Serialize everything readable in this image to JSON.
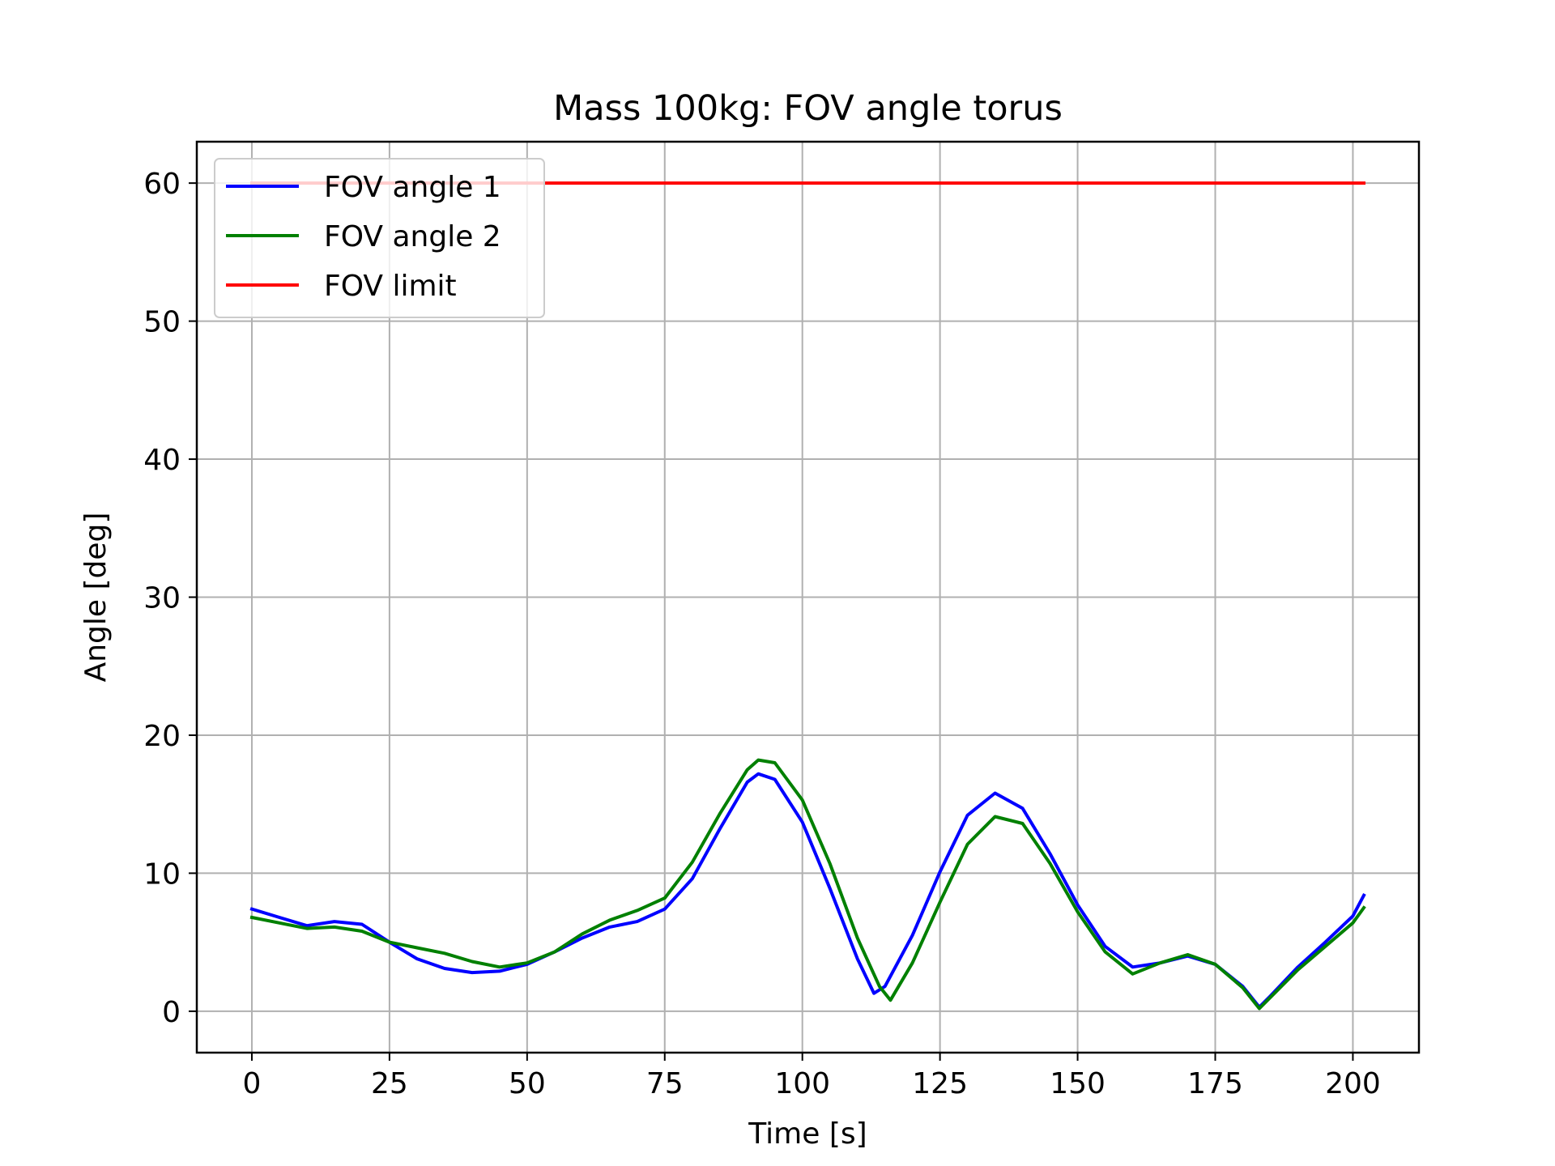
{
  "chart_data": {
    "type": "line",
    "title": "Mass 100kg: FOV angle torus",
    "xlabel": "Time [s]",
    "ylabel": "Angle [deg]",
    "xlim": [
      -10,
      212
    ],
    "ylim": [
      -3,
      63
    ],
    "xticks": [
      0,
      25,
      50,
      75,
      100,
      125,
      150,
      175,
      200
    ],
    "xtick_labels": [
      "0",
      "25",
      "50",
      "75",
      "100",
      "125",
      "150",
      "175",
      "200"
    ],
    "yticks": [
      0,
      10,
      20,
      30,
      40,
      50,
      60
    ],
    "ytick_labels": [
      "0",
      "10",
      "20",
      "30",
      "40",
      "50",
      "60"
    ],
    "grid": true,
    "legend_position": "upper-left",
    "series": [
      {
        "name": "FOV angle 1",
        "color": "#0000ff",
        "x": [
          0,
          5,
          10,
          15,
          20,
          25,
          30,
          35,
          40,
          45,
          50,
          55,
          60,
          65,
          70,
          75,
          80,
          85,
          90,
          92,
          95,
          100,
          105,
          110,
          113,
          115,
          120,
          125,
          130,
          135,
          140,
          145,
          150,
          155,
          160,
          165,
          170,
          175,
          180,
          183,
          185,
          190,
          195,
          200,
          202
        ],
        "values": [
          7.4,
          6.8,
          6.2,
          6.5,
          6.3,
          5.0,
          3.8,
          3.1,
          2.8,
          2.9,
          3.4,
          4.3,
          5.3,
          6.1,
          6.5,
          7.4,
          9.6,
          13.2,
          16.6,
          17.2,
          16.8,
          13.7,
          8.9,
          3.8,
          1.3,
          1.8,
          5.5,
          10.1,
          14.2,
          15.8,
          14.7,
          11.4,
          7.7,
          4.7,
          3.2,
          3.5,
          4.0,
          3.4,
          1.8,
          0.3,
          1.1,
          3.2,
          5.0,
          6.9,
          8.4
        ]
      },
      {
        "name": "FOV angle 2",
        "color": "#008000",
        "x": [
          0,
          5,
          10,
          15,
          20,
          25,
          30,
          35,
          40,
          45,
          50,
          55,
          60,
          65,
          70,
          75,
          80,
          85,
          90,
          92,
          95,
          100,
          105,
          110,
          114,
          116,
          120,
          125,
          130,
          135,
          140,
          145,
          150,
          155,
          160,
          165,
          170,
          175,
          180,
          183,
          185,
          190,
          195,
          200,
          202
        ],
        "values": [
          6.8,
          6.4,
          6.0,
          6.1,
          5.8,
          5.0,
          4.6,
          4.2,
          3.6,
          3.2,
          3.5,
          4.3,
          5.6,
          6.6,
          7.3,
          8.2,
          10.8,
          14.3,
          17.5,
          18.2,
          18.0,
          15.3,
          10.7,
          5.3,
          1.8,
          0.8,
          3.5,
          7.9,
          12.1,
          14.1,
          13.6,
          10.7,
          7.2,
          4.3,
          2.7,
          3.5,
          4.1,
          3.4,
          1.7,
          0.2,
          1.0,
          3.0,
          4.7,
          6.4,
          7.5
        ]
      },
      {
        "name": "FOV limit",
        "color": "#ff0000",
        "x": [
          0,
          202
        ],
        "values": [
          60,
          60
        ]
      }
    ]
  }
}
